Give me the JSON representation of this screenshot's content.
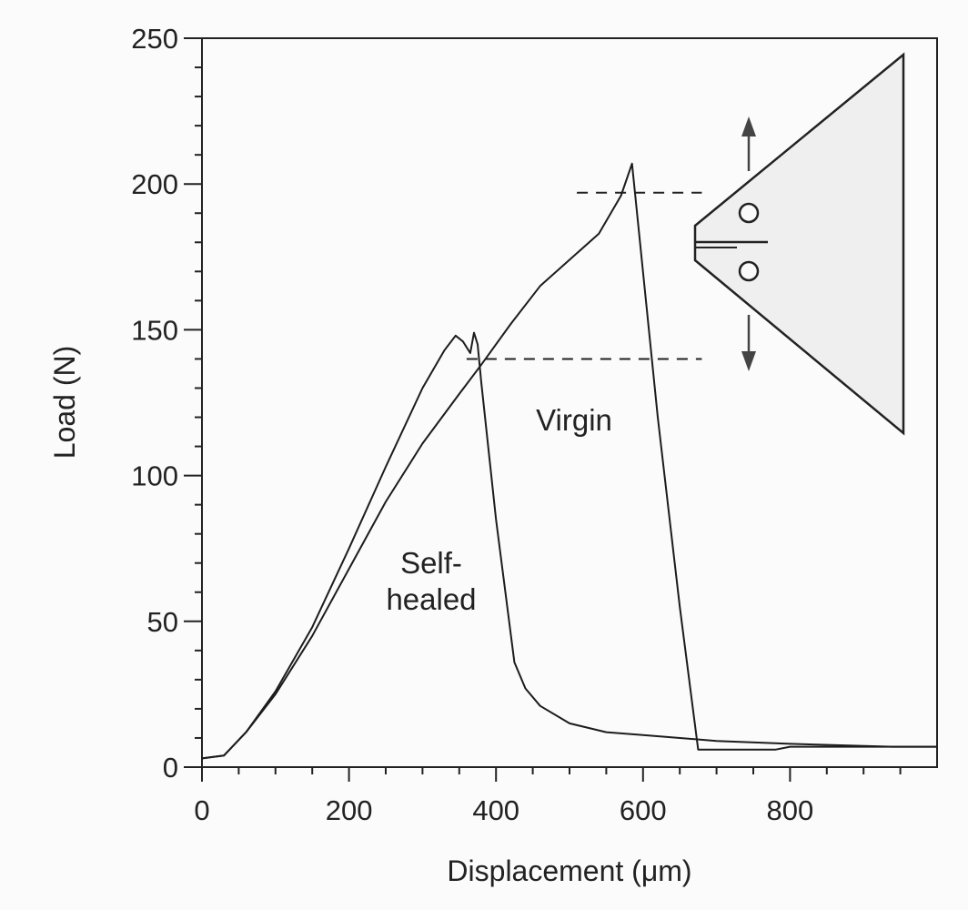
{
  "chart_data": {
    "type": "line",
    "xlabel": "Displacement (μm)",
    "ylabel": "Load  (N)",
    "xlim": [
      0,
      1000
    ],
    "ylim": [
      0,
      250
    ],
    "xticks": [
      0,
      200,
      400,
      600,
      800
    ],
    "yticks": [
      0,
      50,
      100,
      150,
      200,
      250
    ],
    "grid": false,
    "series": [
      {
        "name": "Virgin",
        "x": [
          0,
          30,
          60,
          100,
          150,
          200,
          250,
          300,
          350,
          380,
          420,
          460,
          500,
          540,
          570,
          585,
          620,
          650,
          675,
          700,
          780,
          800,
          940,
          1000
        ],
        "y": [
          3,
          4,
          12,
          25,
          45,
          68,
          91,
          111,
          128,
          138,
          152,
          165,
          174,
          183,
          196,
          207,
          120,
          55,
          6,
          6,
          6,
          7,
          7,
          7
        ]
      },
      {
        "name": "Self-healed",
        "x": [
          0,
          30,
          60,
          100,
          150,
          200,
          250,
          300,
          330,
          345,
          355,
          365,
          370,
          375,
          380,
          400,
          425,
          440,
          460,
          500,
          550,
          600,
          700,
          800,
          940,
          1000
        ],
        "y": [
          3,
          4,
          12,
          26,
          48,
          75,
          103,
          130,
          143,
          148,
          146,
          142,
          149,
          145,
          132,
          85,
          36,
          27,
          21,
          15,
          12,
          11,
          9,
          8,
          7,
          7
        ]
      }
    ],
    "annotations": [
      {
        "text_lines": [
          "Virgin"
        ],
        "x": 630,
        "y": 119
      },
      {
        "text_lines": [
          "Self-",
          "healed"
        ],
        "x": 360,
        "y": 70
      }
    ],
    "dashed_guides": [
      {
        "y": 197,
        "x_from": 510,
        "x_to": 680
      },
      {
        "y": 140,
        "x_from": 360,
        "x_to": 680
      }
    ]
  }
}
